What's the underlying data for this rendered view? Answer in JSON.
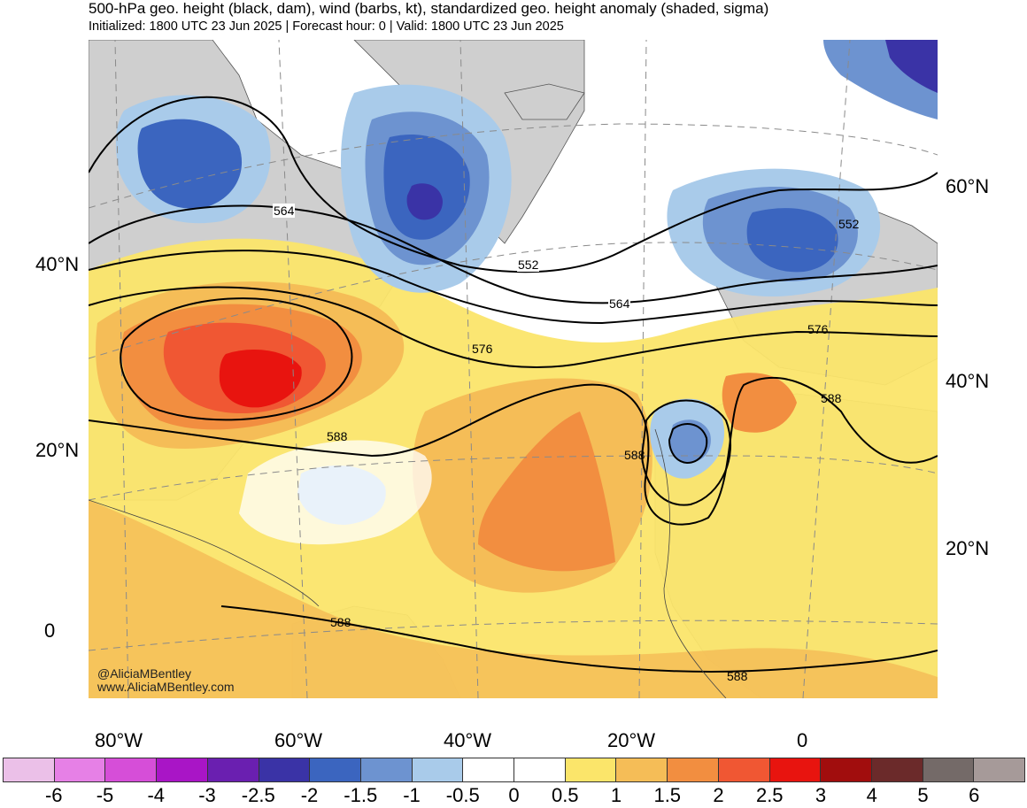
{
  "header": {
    "title": "500-hPa geo. height (black, dam), wind (barbs, kt), standardized geo. height anomaly (shaded, sigma)",
    "subtitle": "Initialized: 1800 UTC 23 Jun 2025 | Forecast hour: 0 | Valid: 1800 UTC 23 Jun 2025"
  },
  "map": {
    "left_lat_labels": [
      "40°N",
      "20°N",
      "0"
    ],
    "right_lat_labels": [
      "60°N",
      "40°N",
      "20°N"
    ],
    "lon_labels": [
      "80°W",
      "60°W",
      "40°W",
      "20°W",
      "0"
    ],
    "contour_labels": [
      "564",
      "552",
      "564",
      "576",
      "576",
      "588",
      "588",
      "588",
      "588",
      "552",
      "588"
    ],
    "credit_line1": "@AliciaMBentley",
    "credit_line2": "www.AliciaMBentley.com"
  },
  "colorbar": {
    "labels": [
      "-6",
      "-5",
      "-4",
      "-3",
      "-2.5",
      "-2",
      "-1.5",
      "-1",
      "-0.5",
      "0",
      "0.5",
      "1",
      "1.5",
      "2",
      "2.5",
      "3",
      "4",
      "5",
      "6"
    ],
    "colors": [
      "#ebc0e8",
      "#e680e6",
      "#d64ed8",
      "#a915c6",
      "#6a1fb0",
      "#3a33a6",
      "#3b65bf",
      "#6d93d0",
      "#a9cbea",
      "#ffffff",
      "#ffffff",
      "#fbe56a",
      "#f5bd57",
      "#f28e40",
      "#f05733",
      "#e8140f",
      "#a10d0d",
      "#6b2a2a",
      "#746a68",
      "#a69a99"
    ]
  },
  "colors": {
    "land": "#cfcfcf",
    "ocean": "#ffffff",
    "grid": "#8a8a8a"
  }
}
